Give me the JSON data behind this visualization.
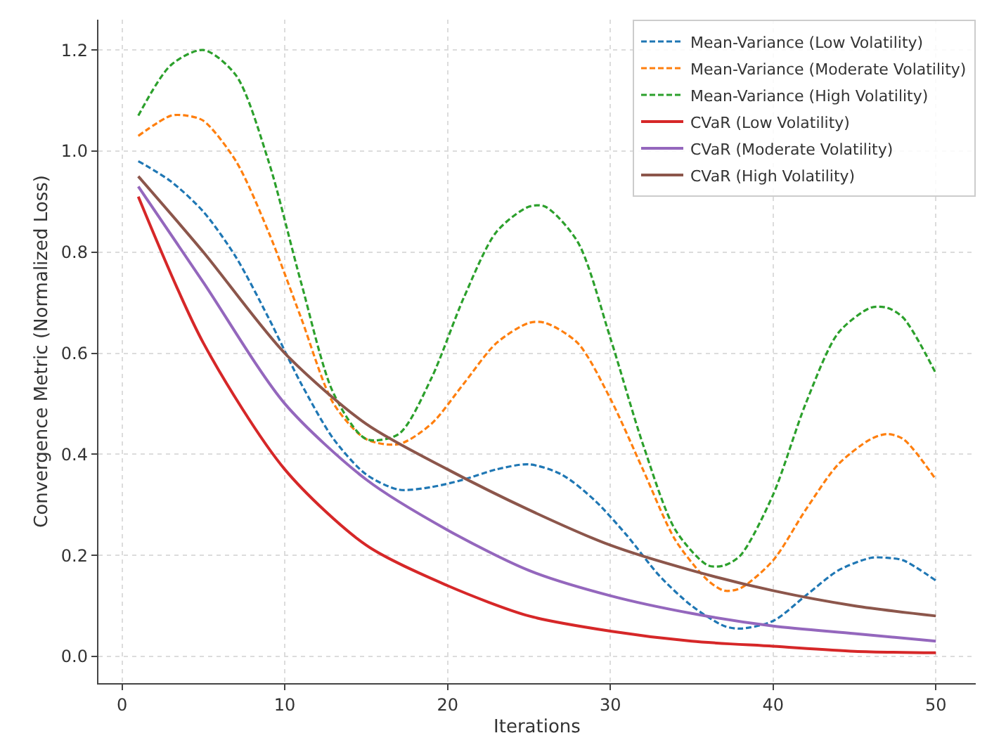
{
  "chart_data": {
    "type": "line",
    "xlabel": "Iterations",
    "ylabel": "Convergence Metric (Normalized Loss)",
    "xlim": [
      -1.45,
      52.45
    ],
    "ylim": [
      -0.053,
      1.26
    ],
    "xticks": [
      0,
      10,
      20,
      30,
      40,
      50
    ],
    "yticks": [
      {
        "value": 0,
        "label": "0.0"
      },
      {
        "value": 0.2,
        "label": "0.2"
      },
      {
        "value": 0.4,
        "label": "0.4"
      },
      {
        "value": 0.6,
        "label": "0.6"
      },
      {
        "value": 0.8,
        "label": "0.8"
      },
      {
        "value": 1,
        "label": "1.0"
      },
      {
        "value": 1.2,
        "label": "1.2"
      }
    ],
    "grid": true,
    "legend": "top right",
    "marker": "none",
    "series": [
      {
        "name": "Mean-Variance (Low Volatility)",
        "color": "#1f77b4",
        "line_style": "dashed",
        "x": [
          1,
          3,
          5,
          7,
          9,
          11,
          13,
          15,
          17,
          19,
          21,
          23,
          25,
          27,
          29,
          31,
          33,
          35,
          37,
          38,
          40,
          42,
          44,
          46,
          47,
          48,
          50
        ],
        "values": [
          0.98,
          0.94,
          0.88,
          0.79,
          0.67,
          0.54,
          0.43,
          0.36,
          0.33,
          0.335,
          0.35,
          0.37,
          0.38,
          0.36,
          0.31,
          0.24,
          0.16,
          0.1,
          0.06,
          0.055,
          0.07,
          0.12,
          0.17,
          0.195,
          0.195,
          0.19,
          0.15
        ]
      },
      {
        "name": "Mean-Variance (Moderate Volatility)",
        "color": "#ff7f0e",
        "line_style": "dashed",
        "x": [
          1,
          3,
          4,
          5,
          7,
          9,
          11,
          13,
          15,
          17,
          19,
          21,
          23,
          25,
          26,
          28,
          30,
          32,
          34,
          36,
          37,
          38,
          40,
          42,
          44,
          46,
          47,
          48,
          50
        ],
        "values": [
          1.03,
          1.07,
          1.07,
          1.06,
          0.98,
          0.84,
          0.67,
          0.5,
          0.43,
          0.42,
          0.46,
          0.54,
          0.62,
          0.66,
          0.66,
          0.62,
          0.51,
          0.37,
          0.23,
          0.15,
          0.13,
          0.135,
          0.19,
          0.29,
          0.38,
          0.43,
          0.44,
          0.43,
          0.35
        ]
      },
      {
        "name": "Mean-Variance (High Volatility)",
        "color": "#2ca02c",
        "line_style": "dashed",
        "x": [
          1,
          3,
          5,
          7,
          9,
          11,
          13,
          15,
          17,
          19,
          21,
          23,
          25,
          26,
          28,
          30,
          32,
          34,
          36,
          37,
          38,
          40,
          42,
          44,
          46,
          47,
          48,
          50
        ],
        "values": [
          1.07,
          1.17,
          1.2,
          1.15,
          0.98,
          0.74,
          0.52,
          0.43,
          0.44,
          0.55,
          0.71,
          0.84,
          0.89,
          0.89,
          0.82,
          0.63,
          0.42,
          0.25,
          0.18,
          0.18,
          0.2,
          0.32,
          0.5,
          0.64,
          0.69,
          0.69,
          0.67,
          0.56
        ]
      },
      {
        "name": "CVaR (Low Volatility)",
        "color": "#d62728",
        "line_style": "solid",
        "x": [
          1,
          5,
          10,
          15,
          20,
          25,
          30,
          35,
          40,
          45,
          50
        ],
        "values": [
          0.91,
          0.62,
          0.37,
          0.22,
          0.14,
          0.08,
          0.05,
          0.03,
          0.02,
          0.01,
          0.007
        ]
      },
      {
        "name": "CVaR (Moderate Volatility)",
        "color": "#9467bd",
        "line_style": "solid",
        "x": [
          1,
          5,
          10,
          15,
          20,
          25,
          30,
          35,
          40,
          45,
          50
        ],
        "values": [
          0.93,
          0.74,
          0.5,
          0.35,
          0.25,
          0.17,
          0.12,
          0.085,
          0.06,
          0.045,
          0.03
        ]
      },
      {
        "name": "CVaR (High Volatility)",
        "color": "#8c564b",
        "line_style": "solid",
        "x": [
          1,
          5,
          10,
          15,
          20,
          25,
          30,
          35,
          40,
          45,
          50
        ],
        "values": [
          0.95,
          0.8,
          0.6,
          0.46,
          0.37,
          0.29,
          0.22,
          0.17,
          0.13,
          0.1,
          0.08
        ]
      }
    ]
  }
}
